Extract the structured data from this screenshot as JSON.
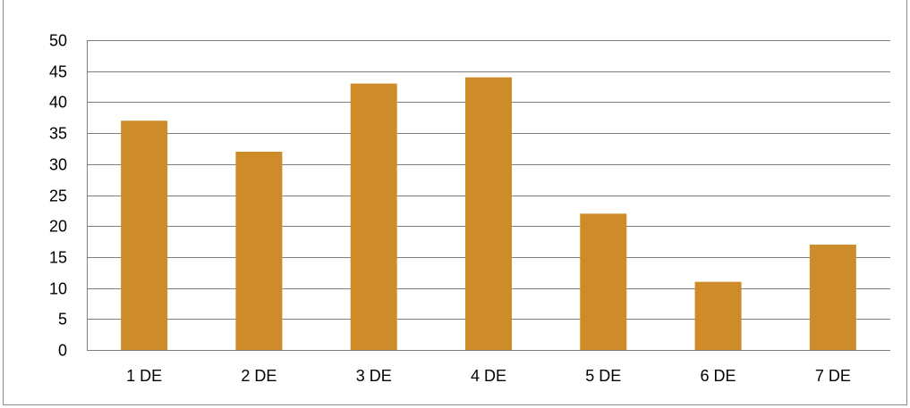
{
  "chart_data": {
    "type": "bar",
    "title": "",
    "xlabel": "",
    "ylabel": "",
    "categories": [
      "1 DE",
      "2 DE",
      "3 DE",
      "4 DE",
      "5 DE",
      "6 DE",
      "7 DE"
    ],
    "values": [
      37,
      32,
      43,
      44,
      22,
      11,
      17
    ],
    "ylim": [
      0,
      50
    ],
    "yticks": [
      0,
      5,
      10,
      15,
      20,
      25,
      30,
      35,
      40,
      45,
      50
    ],
    "grid": true,
    "legend": "none",
    "colors": {
      "bar": "#cd8b2a",
      "grid": "#7f7f7f",
      "axis": "#7f7f7f"
    }
  }
}
